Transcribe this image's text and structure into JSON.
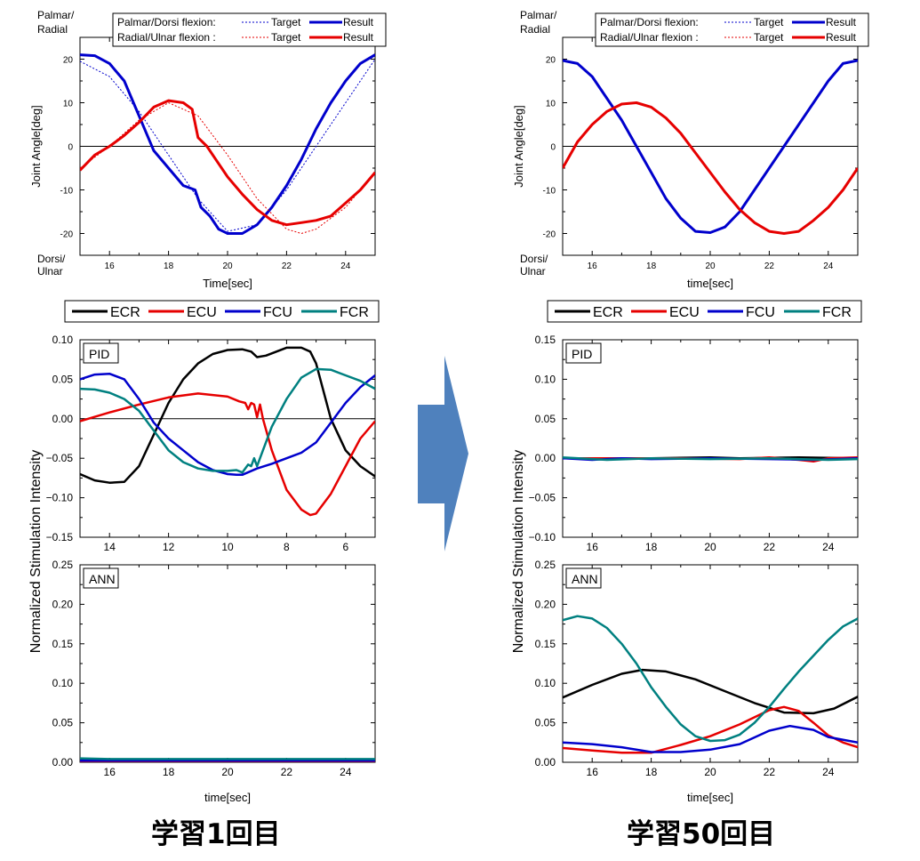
{
  "colors": {
    "ECR": "#000000",
    "ECU": "#e60000",
    "FCU": "#0000cc",
    "FCR": "#008080",
    "arrow": "#4f81bd"
  },
  "captions": {
    "left": "学習1回目",
    "right": "学習50回目"
  },
  "chart_data": [
    {
      "id": "left-joint",
      "type": "line",
      "xlabel": "Time[sec]",
      "ylabel": "Joint Angle[deg]",
      "y_top_label": [
        "Palmar/",
        "Radial"
      ],
      "y_bottom_label": [
        "Dorsi/",
        "Ulnar"
      ],
      "xlim": [
        15,
        25
      ],
      "ylim": [
        -25,
        25
      ],
      "xticks": [
        16,
        18,
        20,
        22,
        24
      ],
      "yticks": [
        -20,
        -10,
        0,
        10,
        20
      ],
      "legend": {
        "row1": {
          "prefix": "Palmar/Dorsi flexion:",
          "target": "Target",
          "result": "Result"
        },
        "row2": {
          "prefix": "Radial/Ulnar flexion :",
          "target": "Target",
          "result": "Result"
        }
      },
      "series": [
        {
          "name": "Palmar/Dorsi Target",
          "color": "#0000cc",
          "dash": true,
          "x": [
            15,
            16,
            17,
            18,
            19,
            20,
            21,
            22,
            23,
            24,
            25
          ],
          "y": [
            19.5,
            16,
            8,
            -2,
            -12,
            -19.5,
            -18,
            -10,
            0,
            10,
            20
          ]
        },
        {
          "name": "Palmar/Dorsi Result",
          "color": "#0000cc",
          "x": [
            15,
            15.5,
            16,
            16.5,
            17,
            17.5,
            18,
            18.5,
            18.9,
            19.1,
            19.4,
            19.7,
            20,
            20.5,
            21,
            21.5,
            22,
            22.5,
            23,
            23.5,
            24,
            24.5,
            25
          ],
          "y": [
            21,
            20.8,
            19,
            15,
            7,
            -1,
            -5,
            -9,
            -10,
            -14,
            -16,
            -19,
            -20,
            -20,
            -18,
            -14,
            -9,
            -3,
            4,
            10,
            15,
            19,
            21
          ]
        },
        {
          "name": "Radial/Ulnar Target",
          "color": "#e60000",
          "dash": true,
          "x": [
            15,
            16,
            17,
            18,
            19,
            20,
            21,
            22,
            22.5,
            23,
            24,
            25
          ],
          "y": [
            -5,
            0,
            6,
            10,
            7,
            -2,
            -12,
            -19,
            -20,
            -19,
            -14,
            -6
          ]
        },
        {
          "name": "Radial/Ulnar Result",
          "color": "#e60000",
          "x": [
            15,
            15.5,
            16,
            16.5,
            17,
            17.5,
            18,
            18.5,
            18.8,
            19,
            19.3,
            19.6,
            20,
            20.5,
            21,
            21.5,
            22,
            22.5,
            23,
            23.5,
            24,
            24.5,
            25
          ],
          "y": [
            -5.5,
            -2,
            0,
            2.5,
            5.5,
            9,
            10.5,
            10,
            8.5,
            2,
            0,
            -3,
            -7,
            -11,
            -14.5,
            -17,
            -18,
            -17.5,
            -17,
            -16,
            -13,
            -10,
            -6
          ]
        }
      ]
    },
    {
      "id": "right-joint",
      "type": "line",
      "xlabel": "time[sec]",
      "ylabel": "Joint Angle[deg]",
      "y_top_label": [
        "Palmar/",
        "Radial"
      ],
      "y_bottom_label": [
        "Dorsi/",
        "Ulnar"
      ],
      "xlim": [
        15,
        25
      ],
      "ylim": [
        -25,
        25
      ],
      "xticks": [
        16,
        18,
        20,
        22,
        24
      ],
      "yticks": [
        -20,
        -10,
        0,
        10,
        20
      ],
      "legend": {
        "row1": {
          "prefix": "Palmar/Dorsi flexion:",
          "target": "Target",
          "result": "Result"
        },
        "row2": {
          "prefix": "Radial/Ulnar flexion :",
          "target": "Target",
          "result": "Result"
        }
      },
      "series": [
        {
          "name": "Palmar/Dorsi Result",
          "color": "#0000cc",
          "x": [
            15,
            15.5,
            16,
            16.5,
            17,
            17.5,
            18,
            18.5,
            19,
            19.5,
            20,
            20.5,
            21,
            21.5,
            22,
            22.5,
            23,
            23.5,
            24,
            24.5,
            25
          ],
          "y": [
            19.7,
            19,
            16,
            11,
            6,
            0,
            -6,
            -12,
            -16.5,
            -19.5,
            -19.8,
            -18.5,
            -15,
            -10,
            -5,
            0,
            5,
            10,
            15,
            19,
            19.7
          ]
        },
        {
          "name": "Radial/Ulnar Result",
          "color": "#e60000",
          "x": [
            15,
            15.5,
            16,
            16.5,
            17,
            17.5,
            18,
            18.5,
            19,
            19.5,
            20,
            20.5,
            21,
            21.5,
            22,
            22.5,
            23,
            23.5,
            24,
            24.5,
            25
          ],
          "y": [
            -5,
            1,
            5,
            8,
            9.7,
            10,
            9,
            6.5,
            3,
            -1.5,
            -6,
            -10.5,
            -14.5,
            -17.5,
            -19.5,
            -20,
            -19.5,
            -17,
            -14,
            -10,
            -5
          ]
        }
      ]
    },
    {
      "id": "left-pid",
      "type": "line",
      "tag": "PID",
      "xlim": [
        15,
        5
      ],
      "ylim": [
        -0.15,
        0.1
      ],
      "xticks": [
        14,
        12,
        10,
        8,
        6
      ],
      "yticks": [
        -0.15,
        -0.1,
        -0.05,
        0,
        0.05,
        0.1
      ],
      "ytick_labels": [
        "−0.15",
        "−0.10",
        "−0.05",
        "0.00",
        "0.05",
        "0.10"
      ],
      "series": [
        {
          "name": "ECR",
          "x": [
            15,
            14.5,
            14,
            13.5,
            13,
            12.5,
            12,
            11.5,
            11,
            10.5,
            10,
            9.5,
            9.2,
            9,
            8.7,
            8,
            7.5,
            7.2,
            7,
            6.5,
            6,
            5.5,
            5
          ],
          "y": [
            -0.07,
            -0.078,
            -0.081,
            -0.08,
            -0.06,
            -0.02,
            0.02,
            0.05,
            0.07,
            0.082,
            0.087,
            0.088,
            0.085,
            0.078,
            0.08,
            0.09,
            0.09,
            0.085,
            0.07,
            0,
            -0.04,
            -0.06,
            -0.073
          ]
        },
        {
          "name": "ECU",
          "x": [
            15,
            14,
            13,
            12,
            11,
            10,
            9.6,
            9.4,
            9.3,
            9.2,
            9.1,
            9,
            8.9,
            8.8,
            8.5,
            8,
            7.5,
            7.2,
            7,
            6.5,
            6,
            5.5,
            5
          ],
          "y": [
            -0.003,
            0.008,
            0.018,
            0.027,
            0.032,
            0.028,
            0.022,
            0.02,
            0.012,
            0.02,
            0.018,
            0.002,
            0.018,
            0,
            -0.04,
            -0.09,
            -0.115,
            -0.122,
            -0.12,
            -0.095,
            -0.06,
            -0.025,
            -0.003
          ]
        },
        {
          "name": "FCU",
          "x": [
            15,
            14.5,
            14,
            13.5,
            13,
            12.5,
            12,
            11.5,
            11,
            10.5,
            10,
            9.7,
            9.5,
            9,
            8.5,
            8,
            7.5,
            7,
            6.5,
            6,
            5.5,
            5
          ],
          "y": [
            0.05,
            0.056,
            0.057,
            0.05,
            0.025,
            -0.005,
            -0.025,
            -0.04,
            -0.055,
            -0.065,
            -0.07,
            -0.071,
            -0.071,
            -0.063,
            -0.057,
            -0.05,
            -0.043,
            -0.03,
            -0.005,
            0.02,
            0.04,
            0.055
          ]
        },
        {
          "name": "FCR",
          "x": [
            15,
            14.5,
            14,
            13.5,
            13,
            12.5,
            12,
            11.5,
            11,
            10.5,
            10,
            9.7,
            9.5,
            9.3,
            9.2,
            9.1,
            9,
            8.8,
            8.5,
            8,
            7.5,
            7,
            6.5,
            6,
            5.5,
            5
          ],
          "y": [
            0.038,
            0.037,
            0.033,
            0.025,
            0.01,
            -0.015,
            -0.04,
            -0.055,
            -0.063,
            -0.066,
            -0.066,
            -0.065,
            -0.068,
            -0.058,
            -0.06,
            -0.05,
            -0.06,
            -0.04,
            -0.01,
            0.025,
            0.052,
            0.063,
            0.062,
            0.055,
            0.048,
            0.038
          ]
        }
      ]
    },
    {
      "id": "left-ann",
      "type": "line",
      "tag": "ANN",
      "xlabel": "time[sec]",
      "xlim": [
        15,
        25
      ],
      "ylim": [
        0,
        0.25
      ],
      "xticks": [
        16,
        18,
        20,
        22,
        24
      ],
      "yticks": [
        0,
        0.05,
        0.1,
        0.15,
        0.2,
        0.25
      ],
      "ytick_labels": [
        "0.00",
        "0.05",
        "0.10",
        "0.15",
        "0.20",
        "0.25"
      ],
      "series": [
        {
          "name": "ECR",
          "x": [
            15,
            25
          ],
          "y": [
            0.003,
            0.003
          ]
        },
        {
          "name": "ECU",
          "x": [
            15,
            25
          ],
          "y": [
            0.001,
            0.001
          ]
        },
        {
          "name": "FCU",
          "x": [
            15,
            25
          ],
          "y": [
            0.002,
            0.002
          ]
        },
        {
          "name": "FCR",
          "x": [
            15,
            16,
            25
          ],
          "y": [
            0.005,
            0.004,
            0.004
          ]
        }
      ]
    },
    {
      "id": "right-pid",
      "type": "line",
      "tag": "PID",
      "xlim": [
        15,
        25
      ],
      "ylim": [
        -0.1,
        0.15
      ],
      "xticks": [
        16,
        18,
        20,
        22,
        24
      ],
      "yticks": [
        -0.1,
        -0.05,
        0,
        0.05,
        0.1,
        0.15
      ],
      "ytick_labels": [
        "−0.10",
        "−0.05",
        "0.00",
        "0.05",
        "0.10",
        "0.15"
      ],
      "series": [
        {
          "name": "ECR",
          "x": [
            15,
            18,
            20,
            21,
            23,
            25
          ],
          "y": [
            0,
            0,
            0.001,
            0,
            0.001,
            0
          ]
        },
        {
          "name": "ECU",
          "x": [
            15,
            19,
            21,
            22,
            23,
            23.5,
            24,
            25
          ],
          "y": [
            0,
            0,
            -0.001,
            0.001,
            -0.002,
            -0.004,
            0,
            0.001
          ]
        },
        {
          "name": "FCU",
          "x": [
            15,
            16,
            17,
            18,
            20,
            22,
            23.5,
            25
          ],
          "y": [
            0,
            -0.002,
            0,
            -0.001,
            0,
            -0.001,
            -0.002,
            0
          ]
        },
        {
          "name": "FCR",
          "x": [
            15,
            16.5,
            18,
            20,
            22,
            24,
            25
          ],
          "y": [
            0.001,
            -0.002,
            0,
            -0.001,
            0,
            -0.002,
            -0.001
          ]
        }
      ]
    },
    {
      "id": "right-ann",
      "type": "line",
      "tag": "ANN",
      "xlabel": "time[sec]",
      "xlim": [
        15,
        25
      ],
      "ylim": [
        0,
        0.25
      ],
      "xticks": [
        16,
        18,
        20,
        22,
        24
      ],
      "yticks": [
        0,
        0.05,
        0.1,
        0.15,
        0.2,
        0.25
      ],
      "ytick_labels": [
        "0.00",
        "0.05",
        "0.10",
        "0.15",
        "0.20",
        "0.25"
      ],
      "series": [
        {
          "name": "ECR",
          "x": [
            15,
            16,
            17,
            17.7,
            18.5,
            19.5,
            20.5,
            21.5,
            22.5,
            23.5,
            24.2,
            25
          ],
          "y": [
            0.082,
            0.098,
            0.112,
            0.117,
            0.115,
            0.105,
            0.09,
            0.075,
            0.063,
            0.062,
            0.068,
            0.083
          ]
        },
        {
          "name": "ECU",
          "x": [
            15,
            16,
            17,
            18,
            19,
            20,
            21,
            22,
            22.5,
            23,
            23.5,
            24,
            24.5,
            25
          ],
          "y": [
            0.018,
            0.015,
            0.012,
            0.012,
            0.022,
            0.033,
            0.048,
            0.066,
            0.07,
            0.065,
            0.05,
            0.034,
            0.025,
            0.019
          ]
        },
        {
          "name": "FCU",
          "x": [
            15,
            16,
            17,
            18,
            19,
            20,
            21,
            22,
            22.7,
            23.5,
            24,
            25
          ],
          "y": [
            0.025,
            0.023,
            0.019,
            0.013,
            0.013,
            0.016,
            0.023,
            0.04,
            0.046,
            0.041,
            0.032,
            0.025
          ]
        },
        {
          "name": "FCR",
          "x": [
            15,
            15.5,
            16,
            16.5,
            17,
            17.5,
            18,
            18.5,
            19,
            19.5,
            20,
            20.5,
            21,
            21.5,
            22,
            22.5,
            23,
            23.5,
            24,
            24.5,
            25
          ],
          "y": [
            0.18,
            0.185,
            0.182,
            0.17,
            0.15,
            0.125,
            0.095,
            0.07,
            0.048,
            0.033,
            0.027,
            0.028,
            0.035,
            0.05,
            0.07,
            0.093,
            0.115,
            0.135,
            0.155,
            0.172,
            0.182
          ]
        }
      ]
    }
  ],
  "muscle_legend": [
    {
      "name": "ECR",
      "label": "ECR"
    },
    {
      "name": "ECU",
      "label": "ECU"
    },
    {
      "name": "FCU",
      "label": "FCU"
    },
    {
      "name": "FCR",
      "label": "FCR"
    }
  ],
  "shared_ylabel": "Normalized Stimulation Intensity"
}
